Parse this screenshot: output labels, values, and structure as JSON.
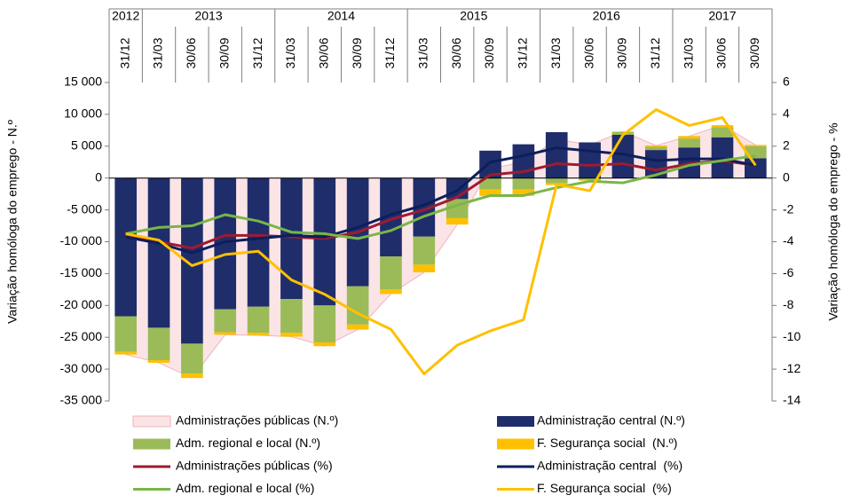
{
  "chart_data": {
    "type": "combo",
    "years": [
      "2012",
      "2013",
      "2013",
      "2013",
      "2013",
      "2014",
      "2014",
      "2014",
      "2014",
      "2015",
      "2015",
      "2015",
      "2015",
      "2016",
      "2016",
      "2016",
      "2016",
      "2017",
      "2017",
      "2017"
    ],
    "categories": [
      "31/12",
      "31/03",
      "30/06",
      "30/09",
      "31/12",
      "31/03",
      "30/06",
      "30/09",
      "31/12",
      "31/03",
      "30/06",
      "30/09",
      "31/12",
      "31/03",
      "30/06",
      "30/09",
      "31/12",
      "31/03",
      "30/06",
      "30/09"
    ],
    "ylabel": "Variação homóloga do emprego - N.º",
    "y2label": "Variação homóloga do emprego - %",
    "ylim": [
      -35000,
      15000
    ],
    "yticks": [
      {
        "value": -35000,
        "label": "-35 000"
      },
      {
        "value": -30000,
        "label": "-30 000"
      },
      {
        "value": -25000,
        "label": "-25 000"
      },
      {
        "value": -20000,
        "label": "-20 000"
      },
      {
        "value": -15000,
        "label": "-15 000"
      },
      {
        "value": -10000,
        "label": "-10 000"
      },
      {
        "value": -5000,
        "label": "-5 000"
      },
      0,
      {
        "value": 5000,
        "label": "5 000"
      },
      {
        "value": 10000,
        "label": "10 000"
      },
      {
        "value": 15000,
        "label": "15 000"
      }
    ],
    "y2lim": [
      -14,
      6
    ],
    "y2ticks": [
      -14,
      -12,
      -10,
      -8,
      -6,
      -4,
      -2,
      0,
      2,
      4,
      6
    ],
    "series": [
      {
        "name": "Administrações públicas (N.º)",
        "kind": "area",
        "color": "#fbe4e6",
        "values": [
          -27700,
          -29000,
          -31400,
          -24600,
          -24700,
          -24900,
          -26400,
          -23800,
          -18200,
          -14800,
          -7300,
          1500,
          2500,
          6100,
          5200,
          7300,
          5100,
          6600,
          8300,
          5200
        ]
      },
      {
        "name": "Administração central (N.º)",
        "kind": "bar",
        "color": "#1f2d6b",
        "values": [
          -21700,
          -23500,
          -26000,
          -20600,
          -20200,
          -19000,
          -20000,
          -17000,
          -12300,
          -9200,
          -3300,
          4300,
          5300,
          7200,
          5600,
          6800,
          4400,
          4800,
          6400,
          3100
        ]
      },
      {
        "name": "Adm. regional e local (N.º)",
        "kind": "bar",
        "color": "#9bbb59",
        "values": [
          -5600,
          -5100,
          -4700,
          -3600,
          -4100,
          -5300,
          -5800,
          -6000,
          -5200,
          -4400,
          -3000,
          -1800,
          -1800,
          -800,
          -300,
          400,
          500,
          1400,
          1600,
          1900
        ]
      },
      {
        "name": "F. Segurança social  (N.º)",
        "kind": "bar",
        "color": "#ffc000",
        "values": [
          -400,
          -400,
          -700,
          -400,
          -400,
          -600,
          -600,
          -800,
          -700,
          -1200,
          -1000,
          -1000,
          -1000,
          -300,
          -100,
          100,
          200,
          400,
          300,
          200
        ]
      },
      {
        "name": "Administrações públicas (%)",
        "kind": "line",
        "axis": "y2",
        "color": "#9c1c31",
        "values": [
          -3.6,
          -4.0,
          -4.4,
          -3.6,
          -3.6,
          -3.7,
          -3.8,
          -3.4,
          -2.6,
          -2.0,
          -1.2,
          0.2,
          0.4,
          0.9,
          0.8,
          0.9,
          0.5,
          0.9,
          1.1,
          0.8
        ]
      },
      {
        "name": "Administração central  (%)",
        "kind": "line",
        "axis": "y2",
        "color": "#0c1f5c",
        "values": [
          -3.7,
          -4.1,
          -4.7,
          -4.0,
          -3.8,
          -3.6,
          -3.7,
          -3.1,
          -2.3,
          -1.7,
          -0.8,
          1.0,
          1.4,
          1.9,
          1.7,
          1.5,
          1.1,
          1.2,
          1.2,
          0.8
        ]
      },
      {
        "name": "Adm. regional e local (%)",
        "kind": "line",
        "axis": "y2",
        "color": "#7ab648",
        "values": [
          -3.5,
          -3.1,
          -3.0,
          -2.3,
          -2.7,
          -3.4,
          -3.5,
          -3.8,
          -3.3,
          -2.4,
          -1.7,
          -1.1,
          -1.1,
          -0.6,
          -0.2,
          -0.3,
          0.2,
          0.8,
          1.1,
          1.4
        ]
      },
      {
        "name": "F. Segurança social  (%)",
        "kind": "line",
        "axis": "y2",
        "color": "#ffc000",
        "values": [
          -3.5,
          -3.9,
          -5.5,
          -4.8,
          -4.6,
          -6.4,
          -7.3,
          -8.5,
          -9.5,
          -12.3,
          -10.5,
          -9.6,
          -8.9,
          -0.4,
          -0.8,
          2.7,
          4.3,
          3.3,
          3.8,
          0.8
        ]
      }
    ]
  }
}
